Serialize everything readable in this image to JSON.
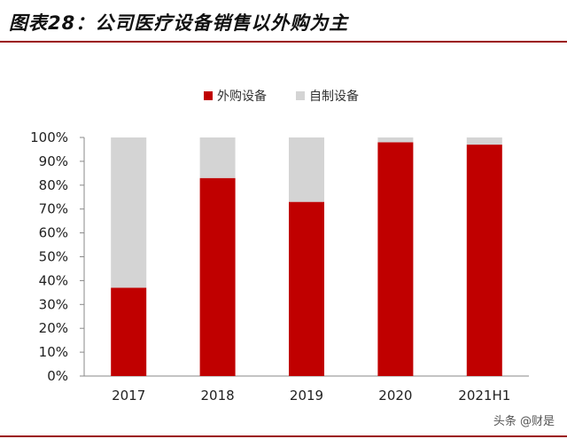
{
  "title": "图表28：公司医疗设备销售以外购为主",
  "watermark": "头条 @财是",
  "colors": {
    "outsourced": "#c00000",
    "self_made": "#d4d4d4",
    "accent": "#9b0e10"
  },
  "chart_data": {
    "type": "bar",
    "stacked": true,
    "categories": [
      "2017",
      "2018",
      "2019",
      "2020",
      "2021H1"
    ],
    "series": [
      {
        "name": "外购设备",
        "values": [
          37,
          83,
          73,
          98,
          97
        ]
      },
      {
        "name": "自制设备",
        "values": [
          63,
          17,
          27,
          2,
          3
        ]
      }
    ],
    "y_ticks": [
      "0%",
      "10%",
      "20%",
      "30%",
      "40%",
      "50%",
      "60%",
      "70%",
      "80%",
      "90%",
      "100%"
    ],
    "ylim": [
      0,
      100
    ],
    "legend": "top-center",
    "grid": false
  }
}
